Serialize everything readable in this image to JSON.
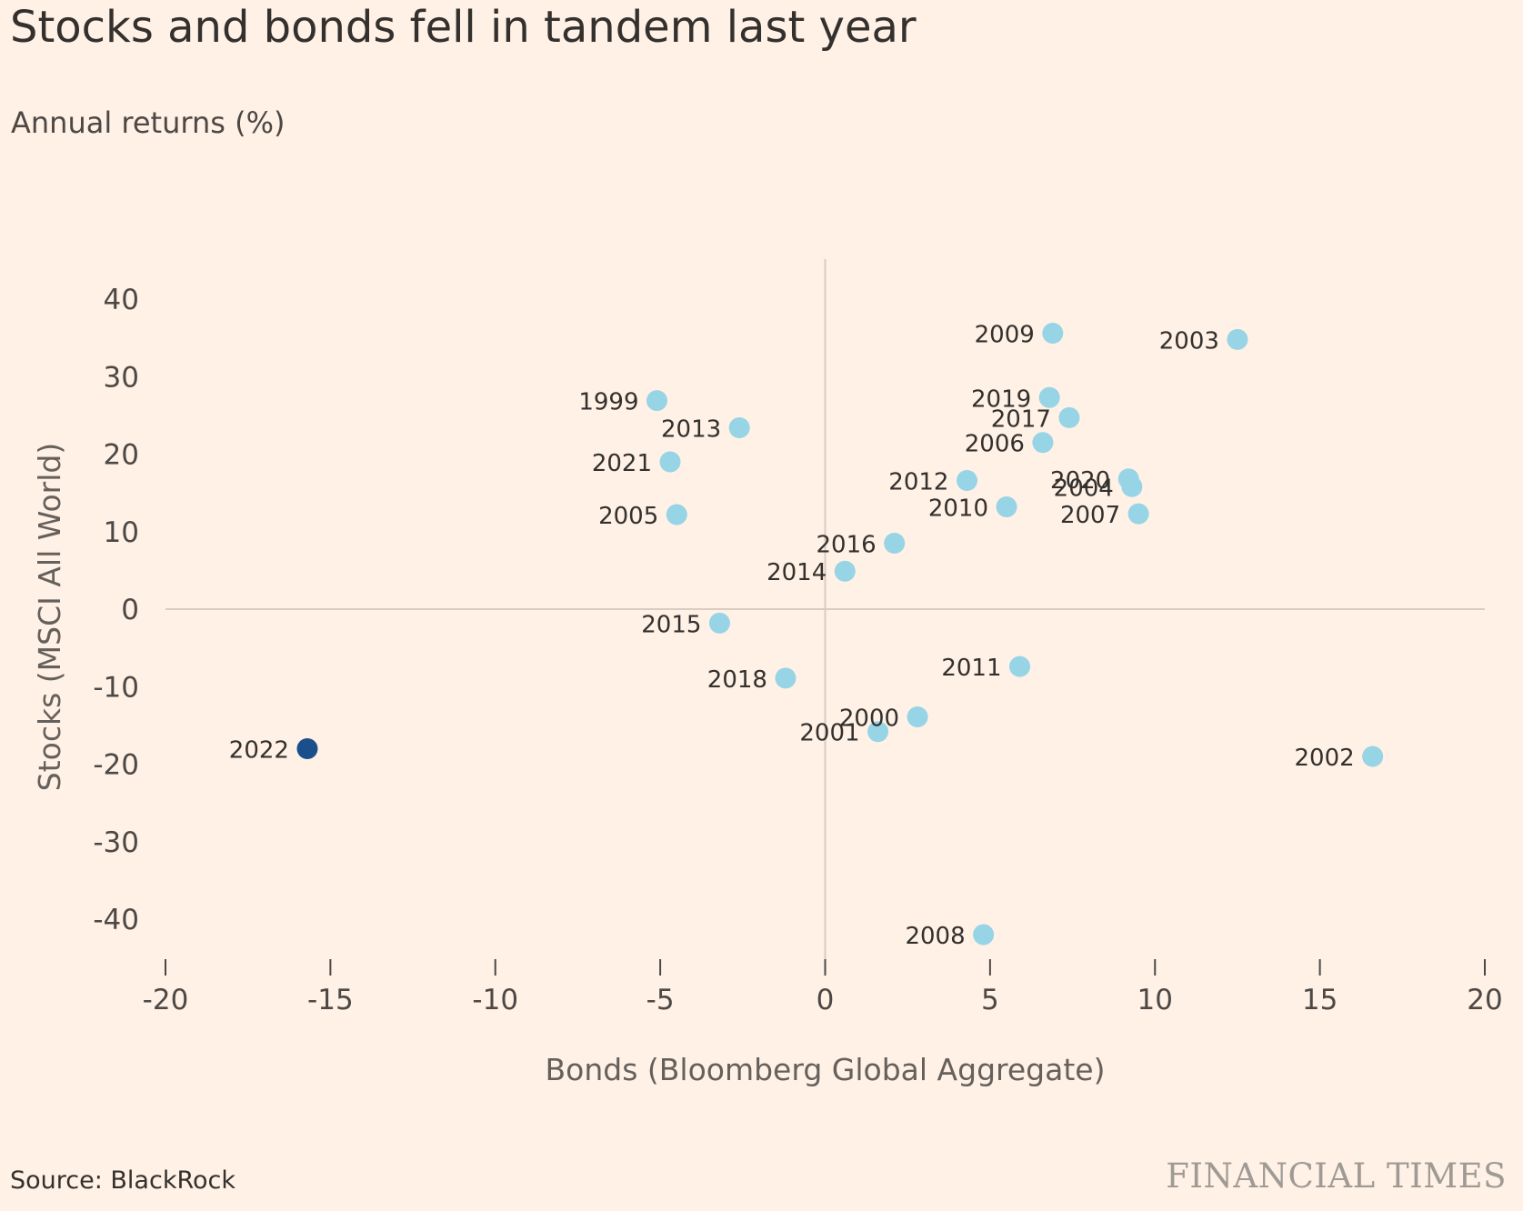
{
  "title": "Stocks and bonds fell in tandem last year",
  "subtitle": "Annual returns (%)",
  "source": "Source: BlackRock",
  "brand": "FINANCIAL TIMES",
  "colors": {
    "background": "#fff1e5",
    "point": "#96d4e6",
    "highlight": "#1b4f8c",
    "axis_line": "#d9ccc1",
    "text": "#33302e"
  },
  "chart_data": {
    "type": "scatter",
    "xlabel": "Bonds (Bloomberg Global Aggregate)",
    "ylabel": "Stocks (MSCI All World)",
    "xlim": [
      -20,
      20
    ],
    "ylim": [
      -45,
      45
    ],
    "x_ticks": [
      "-20",
      "-15",
      "-10",
      "-5",
      "0",
      "5",
      "10",
      "15",
      "20"
    ],
    "y_ticks": [
      "40",
      "30",
      "20",
      "10",
      "0",
      "-10",
      "-20",
      "-30",
      "-40"
    ],
    "grid": false,
    "points": [
      {
        "label": "1999",
        "x": -5.1,
        "y": 26.9
      },
      {
        "label": "2000",
        "x": 2.8,
        "y": -13.9
      },
      {
        "label": "2001",
        "x": 1.6,
        "y": -15.8
      },
      {
        "label": "2002",
        "x": 16.6,
        "y": -19.0
      },
      {
        "label": "2003",
        "x": 12.5,
        "y": 34.8
      },
      {
        "label": "2004",
        "x": 9.3,
        "y": 15.8
      },
      {
        "label": "2005",
        "x": -4.5,
        "y": 12.2
      },
      {
        "label": "2006",
        "x": 6.6,
        "y": 21.5
      },
      {
        "label": "2007",
        "x": 9.5,
        "y": 12.3
      },
      {
        "label": "2008",
        "x": 4.8,
        "y": -42.0
      },
      {
        "label": "2009",
        "x": 6.9,
        "y": 35.6
      },
      {
        "label": "2010",
        "x": 5.5,
        "y": 13.2
      },
      {
        "label": "2011",
        "x": 5.9,
        "y": -7.4
      },
      {
        "label": "2012",
        "x": 4.3,
        "y": 16.6
      },
      {
        "label": "2013",
        "x": -2.6,
        "y": 23.4
      },
      {
        "label": "2014",
        "x": 0.6,
        "y": 4.9
      },
      {
        "label": "2015",
        "x": -3.2,
        "y": -1.8
      },
      {
        "label": "2016",
        "x": 2.1,
        "y": 8.5
      },
      {
        "label": "2017",
        "x": 7.4,
        "y": 24.7
      },
      {
        "label": "2018",
        "x": -1.2,
        "y": -8.9
      },
      {
        "label": "2019",
        "x": 6.8,
        "y": 27.3
      },
      {
        "label": "2020",
        "x": 9.2,
        "y": 16.8
      },
      {
        "label": "2021",
        "x": -4.7,
        "y": 19.0
      },
      {
        "label": "2022",
        "x": -15.7,
        "y": -18.0,
        "highlight": true
      }
    ]
  }
}
